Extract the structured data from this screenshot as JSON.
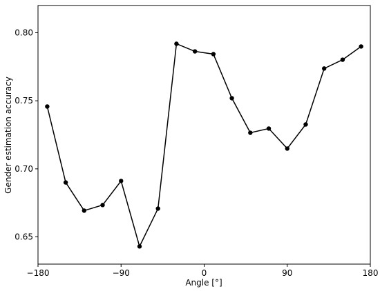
{
  "chart_data": {
    "type": "line",
    "x_label": "Angle [°]",
    "y_label": "Gender estimation accuracy",
    "x": [
      -170,
      -150,
      -130,
      -110,
      -90,
      -70,
      -50,
      -30,
      -10,
      10,
      30,
      50,
      70,
      90,
      110,
      130,
      150,
      170
    ],
    "series": [
      {
        "color": "#000000",
        "values": [
          0.7458,
          0.69,
          0.6693,
          0.6734,
          0.6911,
          0.643,
          0.6708,
          0.7919,
          0.7863,
          0.7843,
          0.7519,
          0.7265,
          0.7296,
          0.7149,
          0.7326,
          0.7737,
          0.7802,
          0.7899
        ]
      }
    ],
    "xlim": [
      -180,
      180
    ],
    "ylim": [
      0.63,
      0.82
    ],
    "xticks": [
      {
        "value": -180,
        "label": "−180"
      },
      {
        "value": -90,
        "label": "−90"
      },
      0,
      90,
      180
    ],
    "yticks": [
      0.65,
      {
        "value": 0.7,
        "label": "0.70"
      },
      0.75,
      {
        "value": 0.8,
        "label": "0.80"
      }
    ],
    "grid": false
  }
}
